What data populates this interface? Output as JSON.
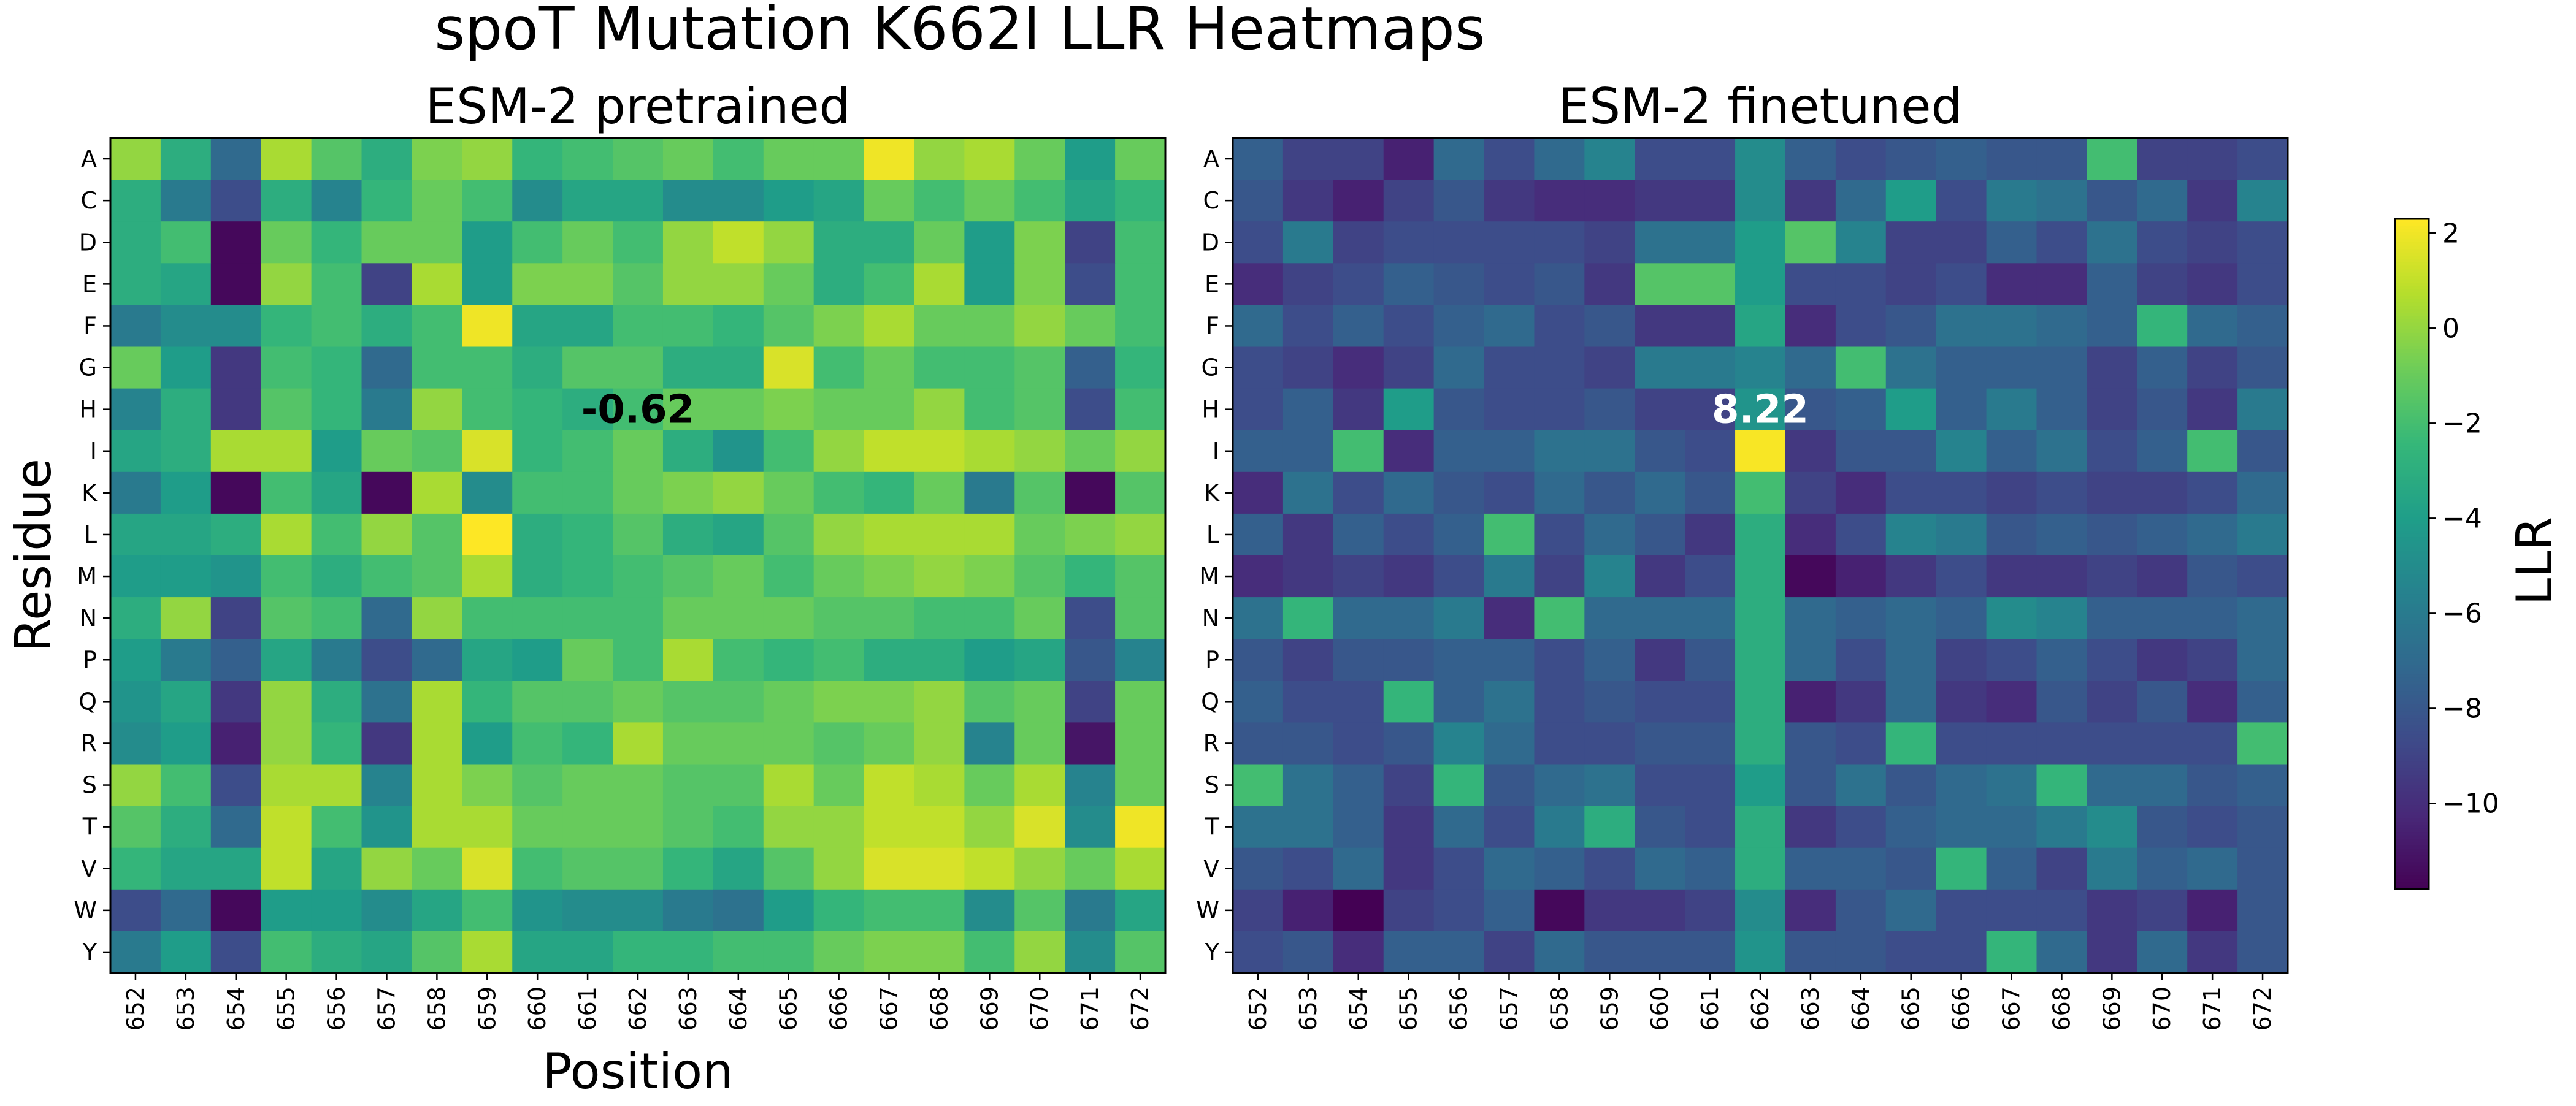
{
  "title": "spoT Mutation K662I LLR Heatmaps",
  "colorbar": {
    "label": "LLR",
    "ticks": [
      2,
      0,
      -2,
      -4,
      -6,
      -8,
      -10
    ],
    "tick_labels": [
      "2",
      "0",
      "−2",
      "−4",
      "−6",
      "−8",
      "−10"
    ],
    "range": [
      -11.8,
      2.3
    ],
    "colormap": "viridis"
  },
  "chart_data": [
    {
      "type": "heatmap",
      "title": "ESM-2 pretrained",
      "xlabel": "Position",
      "ylabel": "Residue",
      "x": [
        "652",
        "653",
        "654",
        "655",
        "656",
        "657",
        "658",
        "659",
        "660",
        "661",
        "662",
        "663",
        "664",
        "665",
        "666",
        "667",
        "668",
        "669",
        "670",
        "671",
        "672"
      ],
      "y": [
        "A",
        "C",
        "D",
        "E",
        "F",
        "G",
        "H",
        "I",
        "K",
        "L",
        "M",
        "N",
        "P",
        "Q",
        "R",
        "S",
        "T",
        "V",
        "W",
        "Y"
      ],
      "values": [
        [
          0.0,
          -3.0,
          -7.0,
          0.5,
          -1.5,
          -3.0,
          -0.5,
          0.0,
          -2.5,
          -2.0,
          -1.5,
          -1.0,
          -2.0,
          -1.0,
          -1.0,
          2.0,
          0.0,
          0.5,
          -1.0,
          -4.0,
          -1.0
        ],
        [
          -3.0,
          -6.0,
          -8.5,
          -3.0,
          -5.5,
          -2.5,
          -1.0,
          -2.0,
          -5.0,
          -3.5,
          -3.5,
          -5.0,
          -5.0,
          -4.0,
          -3.5,
          -1.0,
          -2.0,
          -1.0,
          -2.0,
          -3.5,
          -2.5
        ],
        [
          -3.0,
          -2.0,
          -11.5,
          -1.0,
          -2.5,
          -1.0,
          -1.0,
          -4.0,
          -2.0,
          -1.0,
          -2.0,
          0.0,
          1.0,
          0.0,
          -3.0,
          -3.0,
          -1.0,
          -4.0,
          -0.5,
          -9.0,
          -2.0
        ],
        [
          -3.0,
          -3.5,
          -11.5,
          0.0,
          -2.0,
          -9.0,
          0.5,
          -4.0,
          -0.5,
          -0.5,
          -1.5,
          0.0,
          0.0,
          -1.0,
          -3.0,
          -2.0,
          0.5,
          -4.0,
          -0.5,
          -8.5,
          -2.0
        ],
        [
          -6.0,
          -5.0,
          -5.0,
          -2.5,
          -2.0,
          -3.0,
          -2.0,
          2.0,
          -3.5,
          -3.5,
          -2.0,
          -2.0,
          -2.5,
          -1.5,
          -0.5,
          0.5,
          -1.0,
          -1.0,
          0.0,
          -1.0,
          -2.0
        ],
        [
          -1.0,
          -4.0,
          -9.5,
          -2.0,
          -2.5,
          -7.0,
          -2.0,
          -2.0,
          -3.0,
          -1.5,
          -1.5,
          -3.0,
          -3.0,
          1.5,
          -2.0,
          -1.0,
          -2.0,
          -2.0,
          -1.5,
          -7.5,
          -2.5
        ],
        [
          -5.5,
          -3.0,
          -9.5,
          -1.5,
          -2.5,
          -6.0,
          0.0,
          -2.0,
          -2.5,
          -3.0,
          -2.0,
          -1.0,
          -1.0,
          -0.5,
          -1.0,
          -1.0,
          0.0,
          -2.0,
          -1.5,
          -8.5,
          -2.0
        ],
        [
          -3.5,
          -3.0,
          0.5,
          0.5,
          -4.0,
          -1.0,
          -1.5,
          1.5,
          -2.5,
          -2.0,
          -1.0,
          -3.0,
          -4.5,
          -2.0,
          0.0,
          1.0,
          1.0,
          0.5,
          0.0,
          -1.0,
          0.0
        ],
        [
          -6.0,
          -4.0,
          -11.5,
          -2.0,
          -3.5,
          -11.5,
          0.5,
          -5.0,
          -2.0,
          -2.0,
          -1.0,
          -0.5,
          0.0,
          -1.0,
          -2.0,
          -2.5,
          -1.0,
          -6.0,
          -1.5,
          -11.5,
          -1.5
        ],
        [
          -3.5,
          -3.5,
          -3.0,
          0.5,
          -2.0,
          0.0,
          -1.5,
          2.3,
          -3.0,
          -2.5,
          -1.5,
          -3.0,
          -3.5,
          -1.5,
          0.0,
          0.5,
          0.5,
          0.5,
          -1.0,
          -0.5,
          0.0
        ],
        [
          -4.0,
          -4.0,
          -4.5,
          -2.0,
          -3.0,
          -2.0,
          -1.5,
          0.5,
          -3.0,
          -2.5,
          -2.0,
          -1.5,
          -1.0,
          -2.0,
          -1.0,
          -0.5,
          0.0,
          -0.5,
          -1.5,
          -2.5,
          -1.5
        ],
        [
          -3.0,
          0.0,
          -9.0,
          -1.5,
          -2.0,
          -7.0,
          0.0,
          -2.0,
          -2.0,
          -2.0,
          -2.0,
          -1.0,
          -1.0,
          -1.0,
          -1.5,
          -1.5,
          -2.0,
          -2.0,
          -1.0,
          -8.5,
          -1.5
        ],
        [
          -4.0,
          -6.0,
          -7.5,
          -3.5,
          -6.0,
          -8.5,
          -7.0,
          -3.5,
          -4.0,
          -1.0,
          -2.0,
          0.5,
          -2.0,
          -2.5,
          -2.0,
          -3.0,
          -3.0,
          -4.0,
          -3.5,
          -8.0,
          -5.5
        ],
        [
          -4.5,
          -3.5,
          -9.5,
          0.0,
          -3.0,
          -6.5,
          0.5,
          -2.5,
          -1.5,
          -1.5,
          -1.0,
          -1.5,
          -1.5,
          -1.0,
          -0.5,
          -0.5,
          0.0,
          -1.5,
          -1.0,
          -9.0,
          -1.0
        ],
        [
          -5.0,
          -4.0,
          -10.5,
          0.0,
          -2.5,
          -9.5,
          0.5,
          -4.0,
          -2.0,
          -2.5,
          0.5,
          -1.0,
          -1.0,
          -1.0,
          -1.5,
          -1.0,
          0.0,
          -5.5,
          -1.0,
          -11.0,
          -1.0
        ],
        [
          0.0,
          -2.0,
          -8.5,
          0.5,
          0.5,
          -5.5,
          0.5,
          -0.5,
          -1.5,
          -1.0,
          -1.0,
          -1.5,
          -1.5,
          0.5,
          -1.0,
          1.0,
          0.5,
          -1.0,
          0.5,
          -5.5,
          -1.0
        ],
        [
          -1.5,
          -3.0,
          -7.0,
          1.0,
          -2.0,
          -4.5,
          0.5,
          0.5,
          -1.0,
          -1.0,
          -1.0,
          -1.5,
          -2.0,
          0.0,
          0.0,
          1.0,
          1.0,
          0.0,
          1.5,
          -5.0,
          2.0
        ],
        [
          -2.5,
          -3.5,
          -3.5,
          1.0,
          -3.5,
          0.0,
          -1.0,
          1.5,
          -2.0,
          -1.5,
          -1.5,
          -2.5,
          -3.5,
          -1.5,
          0.0,
          1.5,
          1.5,
          1.0,
          0.0,
          -1.0,
          0.5
        ],
        [
          -8.5,
          -7.0,
          -11.5,
          -4.0,
          -4.0,
          -5.0,
          -3.5,
          -2.0,
          -4.5,
          -5.0,
          -5.0,
          -6.0,
          -6.5,
          -4.0,
          -2.5,
          -2.0,
          -2.0,
          -5.0,
          -1.5,
          -6.0,
          -3.5
        ],
        [
          -6.0,
          -4.0,
          -8.5,
          -2.0,
          -3.0,
          -3.5,
          -1.5,
          0.5,
          -3.5,
          -3.5,
          -2.5,
          -2.5,
          -2.0,
          -2.0,
          -1.0,
          -0.5,
          -0.5,
          -2.0,
          0.0,
          -5.0,
          -1.5
        ]
      ],
      "annotation": {
        "text": "-0.62",
        "x": "662",
        "y": "H"
      }
    },
    {
      "type": "heatmap",
      "title": "ESM-2 finetuned",
      "xlabel": "",
      "ylabel": "",
      "x": [
        "652",
        "653",
        "654",
        "655",
        "656",
        "657",
        "658",
        "659",
        "660",
        "661",
        "662",
        "663",
        "664",
        "665",
        "666",
        "667",
        "668",
        "669",
        "670",
        "671",
        "672"
      ],
      "y": [
        "A",
        "C",
        "D",
        "E",
        "F",
        "G",
        "H",
        "I",
        "K",
        "L",
        "M",
        "N",
        "P",
        "Q",
        "R",
        "S",
        "T",
        "V",
        "W",
        "Y"
      ],
      "values": [
        [
          -7.5,
          -9.0,
          -9.0,
          -10.5,
          -7.0,
          -8.5,
          -7.0,
          -5.5,
          -8.5,
          -8.5,
          -5.0,
          -7.5,
          -8.5,
          -8.0,
          -7.5,
          -8.0,
          -8.0,
          -2.0,
          -9.0,
          -9.0,
          -8.5
        ],
        [
          -8.0,
          -9.5,
          -10.5,
          -9.0,
          -8.0,
          -9.5,
          -10.0,
          -10.0,
          -9.5,
          -9.5,
          -5.0,
          -9.5,
          -7.0,
          -4.0,
          -8.5,
          -6.0,
          -6.5,
          -8.0,
          -7.0,
          -9.5,
          -5.5
        ],
        [
          -8.5,
          -6.0,
          -9.0,
          -8.5,
          -8.5,
          -8.5,
          -8.5,
          -9.0,
          -6.5,
          -6.5,
          -4.0,
          -1.5,
          -5.5,
          -9.0,
          -9.0,
          -7.5,
          -8.5,
          -6.5,
          -8.5,
          -9.0,
          -8.5
        ],
        [
          -10.0,
          -9.0,
          -8.5,
          -7.5,
          -8.0,
          -8.5,
          -8.0,
          -9.5,
          -1.5,
          -1.5,
          -4.0,
          -8.5,
          -8.5,
          -9.0,
          -8.5,
          -10.0,
          -10.0,
          -7.5,
          -9.0,
          -9.5,
          -8.5
        ],
        [
          -7.0,
          -8.5,
          -7.5,
          -8.5,
          -7.5,
          -7.0,
          -8.5,
          -8.0,
          -9.5,
          -9.5,
          -3.5,
          -10.0,
          -8.5,
          -8.0,
          -6.5,
          -6.5,
          -7.0,
          -7.5,
          -2.5,
          -7.0,
          -7.5
        ],
        [
          -8.5,
          -9.0,
          -10.0,
          -9.0,
          -7.0,
          -8.5,
          -8.5,
          -9.0,
          -6.0,
          -6.0,
          -5.5,
          -7.0,
          -2.0,
          -6.5,
          -7.5,
          -7.5,
          -7.5,
          -9.0,
          -7.5,
          -9.0,
          -8.0
        ],
        [
          -8.5,
          -7.5,
          -9.5,
          -4.0,
          -8.0,
          -8.5,
          -8.5,
          -8.0,
          -9.0,
          -9.0,
          -4.5,
          -8.0,
          -7.5,
          -4.0,
          -7.5,
          -6.0,
          -7.5,
          -9.0,
          -8.0,
          -9.5,
          -6.0
        ],
        [
          -7.5,
          -7.5,
          -2.0,
          -10.0,
          -7.5,
          -7.5,
          -6.5,
          -6.5,
          -8.0,
          -8.5,
          2.2,
          -9.5,
          -8.0,
          -8.0,
          -5.5,
          -7.5,
          -6.5,
          -8.5,
          -7.5,
          -2.0,
          -8.0
        ],
        [
          -10.0,
          -6.5,
          -8.5,
          -7.0,
          -8.0,
          -8.5,
          -7.0,
          -8.0,
          -7.0,
          -8.0,
          -2.0,
          -9.0,
          -10.0,
          -8.5,
          -8.5,
          -9.0,
          -8.5,
          -9.0,
          -9.0,
          -8.5,
          -7.0
        ],
        [
          -7.5,
          -9.5,
          -7.5,
          -8.5,
          -7.5,
          -2.0,
          -8.5,
          -7.0,
          -8.0,
          -9.5,
          -3.0,
          -10.0,
          -8.5,
          -5.5,
          -6.0,
          -8.0,
          -7.5,
          -8.0,
          -7.5,
          -7.0,
          -6.0
        ],
        [
          -10.0,
          -9.5,
          -9.0,
          -9.5,
          -8.5,
          -6.0,
          -9.0,
          -5.5,
          -9.5,
          -8.5,
          -3.0,
          -11.5,
          -10.5,
          -9.5,
          -8.5,
          -9.5,
          -9.5,
          -9.0,
          -9.5,
          -8.0,
          -8.5
        ],
        [
          -6.5,
          -2.5,
          -7.0,
          -7.0,
          -6.0,
          -10.0,
          -2.0,
          -7.0,
          -7.0,
          -7.0,
          -3.0,
          -7.0,
          -7.5,
          -7.0,
          -7.5,
          -5.0,
          -5.5,
          -7.5,
          -7.5,
          -7.5,
          -7.0
        ],
        [
          -8.0,
          -9.0,
          -8.0,
          -8.0,
          -7.5,
          -7.5,
          -8.5,
          -7.5,
          -9.5,
          -8.0,
          -3.0,
          -7.0,
          -8.5,
          -7.0,
          -9.0,
          -8.5,
          -7.5,
          -8.5,
          -9.5,
          -9.0,
          -7.0
        ],
        [
          -7.5,
          -8.5,
          -8.5,
          -2.5,
          -7.5,
          -6.5,
          -8.5,
          -8.0,
          -8.5,
          -8.5,
          -3.0,
          -10.5,
          -9.5,
          -7.0,
          -9.5,
          -10.0,
          -8.0,
          -9.0,
          -8.0,
          -10.0,
          -7.5
        ],
        [
          -8.0,
          -8.0,
          -8.5,
          -8.0,
          -5.5,
          -7.0,
          -8.5,
          -8.5,
          -8.0,
          -8.0,
          -3.0,
          -8.0,
          -8.5,
          -2.5,
          -8.5,
          -8.5,
          -8.5,
          -8.5,
          -8.5,
          -8.5,
          -2.0
        ],
        [
          -2.0,
          -6.5,
          -7.5,
          -9.0,
          -2.5,
          -8.0,
          -7.0,
          -6.5,
          -8.5,
          -8.5,
          -4.0,
          -8.0,
          -6.5,
          -8.0,
          -7.0,
          -6.5,
          -2.5,
          -7.0,
          -7.0,
          -8.0,
          -7.5
        ],
        [
          -6.5,
          -6.5,
          -7.5,
          -9.5,
          -7.0,
          -8.5,
          -6.0,
          -3.0,
          -8.0,
          -8.5,
          -3.0,
          -9.5,
          -8.5,
          -7.5,
          -7.0,
          -7.0,
          -6.0,
          -5.0,
          -8.0,
          -8.5,
          -8.0
        ],
        [
          -8.0,
          -8.5,
          -7.0,
          -9.5,
          -8.5,
          -7.0,
          -7.5,
          -8.5,
          -7.0,
          -7.5,
          -3.0,
          -7.5,
          -7.5,
          -8.0,
          -2.5,
          -7.5,
          -9.0,
          -6.0,
          -7.5,
          -7.0,
          -8.0
        ],
        [
          -9.0,
          -10.5,
          -11.8,
          -9.0,
          -8.5,
          -7.5,
          -11.5,
          -9.5,
          -9.5,
          -9.0,
          -5.0,
          -10.0,
          -8.0,
          -7.0,
          -8.5,
          -8.5,
          -8.5,
          -9.5,
          -9.0,
          -10.5,
          -8.0
        ],
        [
          -8.5,
          -8.0,
          -10.0,
          -7.5,
          -7.5,
          -9.0,
          -7.0,
          -8.0,
          -8.0,
          -8.0,
          -4.5,
          -8.0,
          -8.0,
          -8.5,
          -8.5,
          -2.5,
          -7.0,
          -9.5,
          -7.0,
          -9.5,
          -8.0
        ]
      ],
      "annotation": {
        "text": "8.22",
        "x": "662",
        "y": "H"
      }
    }
  ]
}
